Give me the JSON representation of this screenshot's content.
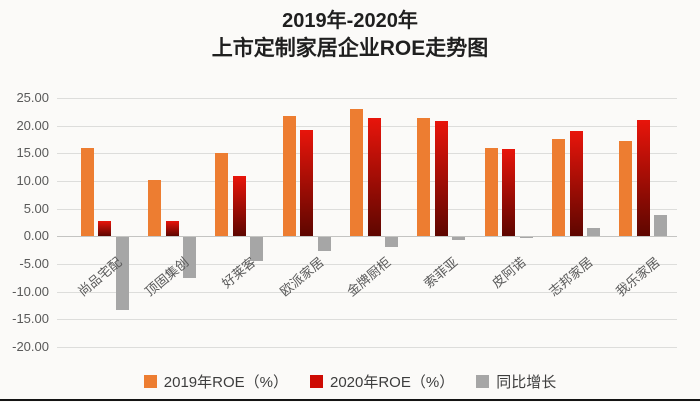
{
  "chart_data": {
    "type": "bar",
    "title_lines": [
      "2019年-2020年",
      "上市定制家居企业ROE走势图"
    ],
    "categories": [
      "尚品宅配",
      "顶固集创",
      "好莱客",
      "欧派家居",
      "金牌厨柜",
      "索菲亚",
      "皮阿诺",
      "志邦家居",
      "我乐家居"
    ],
    "series": [
      {
        "name": "2019年ROE（%）",
        "color": "#ED7D31",
        "values": [
          16.0,
          10.2,
          15.1,
          21.7,
          23.1,
          21.4,
          15.9,
          17.6,
          17.2
        ]
      },
      {
        "name": "2020年ROE（%）",
        "color": "#CE0B03",
        "gradient": [
          "#E8150B",
          "#5E0600"
        ],
        "values": [
          2.8,
          2.8,
          10.9,
          19.3,
          21.3,
          20.9,
          15.7,
          19.1,
          21.1
        ]
      },
      {
        "name": "同比增长",
        "color": "#A6A6A6",
        "values": [
          -13.2,
          -7.4,
          -4.2,
          -2.4,
          -1.8,
          -0.5,
          -0.2,
          1.5,
          3.9
        ]
      }
    ],
    "ylim": [
      -20,
      25
    ],
    "ytick_step": 5,
    "ytick_decimals": 2,
    "grid": true,
    "legend_position": "bottom",
    "axis_text_color": "#595959",
    "gridline_color": "#DDDDDB"
  }
}
